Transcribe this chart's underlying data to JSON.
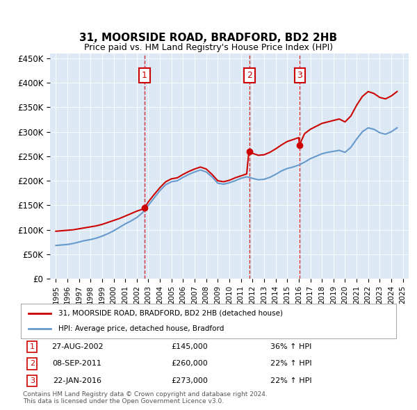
{
  "title": "31, MOORSIDE ROAD, BRADFORD, BD2 2HB",
  "subtitle": "Price paid vs. HM Land Registry's House Price Index (HPI)",
  "background_color": "#dce9f5",
  "plot_bg_color": "#dce9f5",
  "ylim": [
    0,
    460000
  ],
  "yticks": [
    0,
    50000,
    100000,
    150000,
    200000,
    250000,
    300000,
    350000,
    400000,
    450000
  ],
  "ytick_labels": [
    "£0",
    "£50K",
    "£100K",
    "£150K",
    "£200K",
    "£250K",
    "£300K",
    "£350K",
    "£400K",
    "£450K"
  ],
  "sale_dates": [
    "2002-08-27",
    "2011-09-08",
    "2016-01-22"
  ],
  "sale_prices": [
    145000,
    260000,
    273000
  ],
  "sale_labels": [
    "1",
    "2",
    "3"
  ],
  "sale_pct": [
    "36% ↑ HPI",
    "22% ↑ HPI",
    "22% ↑ HPI"
  ],
  "sale_date_labels": [
    "27-AUG-2002",
    "08-SEP-2011",
    "22-JAN-2016"
  ],
  "sale_price_labels": [
    "£145,000",
    "£260,000",
    "£273,000"
  ],
  "red_line_color": "#cc0000",
  "blue_line_color": "#6699cc",
  "legend_label_red": "31, MOORSIDE ROAD, BRADFORD, BD2 2HB (detached house)",
  "legend_label_blue": "HPI: Average price, detached house, Bradford",
  "footer": "Contains HM Land Registry data © Crown copyright and database right 2024.\nThis data is licensed under the Open Government Licence v3.0."
}
